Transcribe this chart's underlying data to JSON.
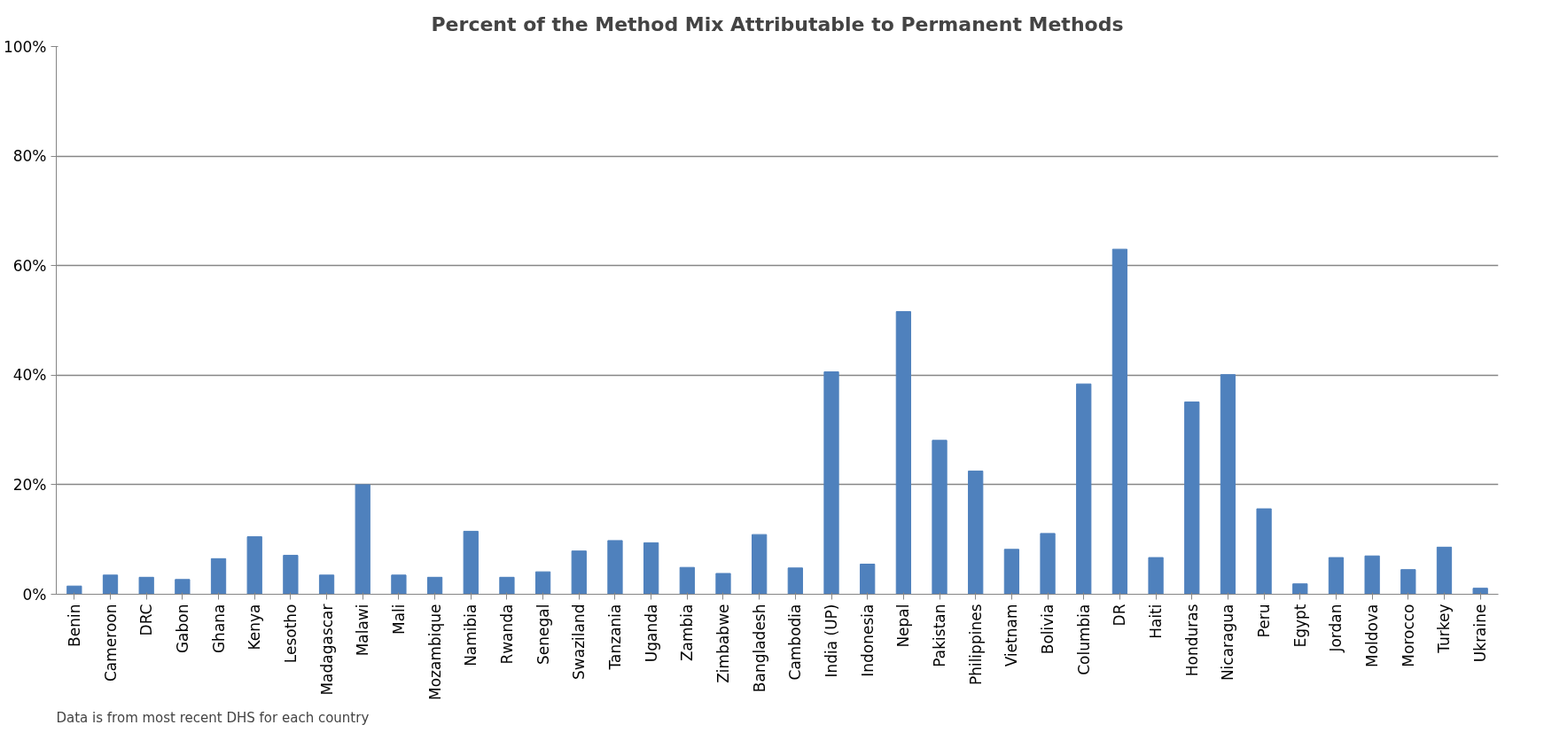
{
  "chart_data": {
    "type": "bar",
    "title": "Percent of the Method Mix Attributable to Permanent Methods",
    "categories": [
      "Benin",
      "Cameroon",
      "DRC",
      "Gabon",
      "Ghana",
      "Kenya",
      "Lesotho",
      "Madagascar",
      "Malawi",
      "Mali",
      "Mozambique",
      "Namibia",
      "Rwanda",
      "Senegal",
      "Swaziland",
      "Tanzania",
      "Uganda",
      "Zambia",
      "Zimbabwe",
      "Bangladesh",
      "Cambodia",
      "India (UP)",
      "Indonesia",
      "Nepal",
      "Pakistan",
      "Philippines",
      "Vietnam",
      "Bolivia",
      "Columbia",
      "DR",
      "Haiti",
      "Honduras",
      "Nicaragua",
      "Peru",
      "Egypt",
      "Jordan",
      "Moldova",
      "Morocco",
      "Turkey",
      "Ukraine"
    ],
    "values": [
      1.5,
      3.5,
      3.1,
      2.7,
      6.5,
      10.5,
      7.1,
      3.5,
      20,
      3.5,
      3.1,
      11.5,
      3.1,
      4.1,
      7.9,
      9.8,
      9.4,
      4.9,
      3.8,
      10.9,
      4.8,
      40.6,
      5.5,
      51.6,
      28.1,
      22.5,
      8.2,
      11.1,
      38.4,
      63.0,
      6.7,
      35.1,
      40.1,
      15.6,
      1.9,
      6.7,
      7.0,
      4.5,
      8.6,
      1.1
    ],
    "color": "#4f81bd",
    "ylim": [
      0,
      100
    ],
    "yticks": [
      {
        "value": 0,
        "label": "0%"
      },
      {
        "value": 20,
        "label": "20%"
      },
      {
        "value": 40,
        "label": "40%"
      },
      {
        "value": 60,
        "label": "60%"
      },
      {
        "value": 80,
        "label": "80%"
      },
      {
        "value": 100,
        "label": "100%"
      }
    ],
    "grid": "y",
    "annotations": [
      "Data is from most recent DHS for each country"
    ]
  }
}
